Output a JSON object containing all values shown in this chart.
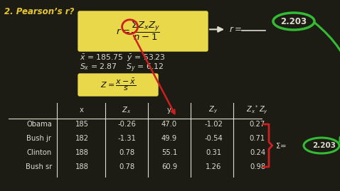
{
  "title": "2. Pearson’s r?",
  "bg_color": "#1c1c14",
  "formula_box_color": "#e8d84a",
  "result_value": "2.203",
  "table_rows": [
    [
      "Obama",
      "185",
      "-0.26",
      "47.0",
      "-1.02",
      "0.27"
    ],
    [
      "Bush jr",
      "182",
      "-1.31",
      "49.9",
      "-0.54",
      "0.71"
    ],
    [
      "Clinton",
      "188",
      "0.78",
      "55.1",
      "0.31",
      "0.24"
    ],
    [
      "Bush sr",
      "188",
      "0.78",
      "60.9",
      "1.26",
      "0.98"
    ]
  ],
  "chalk_color": "#ddddd0",
  "yellow_color": "#e8c830",
  "green_color": "#33bb33",
  "red_color": "#cc2020",
  "dark_color": "#111108",
  "fig_w": 4.78,
  "fig_h": 2.69,
  "dpi": 100
}
